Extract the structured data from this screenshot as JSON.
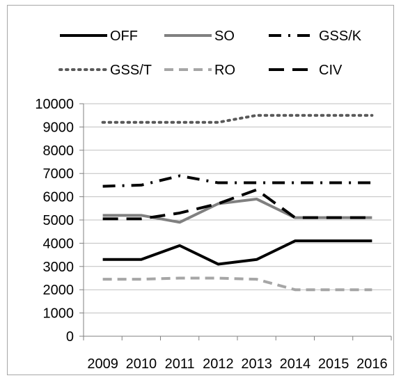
{
  "chart_data": {
    "type": "line",
    "categories": [
      "2009",
      "2010",
      "2011",
      "2012",
      "2013",
      "2014",
      "2015",
      "2016"
    ],
    "ylim": [
      0,
      10000
    ],
    "yticks": [
      "0",
      "1000",
      "2000",
      "3000",
      "4000",
      "5000",
      "6000",
      "7000",
      "8000",
      "9000",
      "10000"
    ],
    "grid": true,
    "legend_position": "top",
    "series": [
      {
        "name": "OFF",
        "color": "#000000",
        "style": "solid",
        "values": [
          3300,
          3300,
          3900,
          3100,
          3300,
          4100,
          4100,
          4100
        ]
      },
      {
        "name": "SO",
        "color": "#808080",
        "style": "solid",
        "values": [
          5200,
          5200,
          4900,
          5700,
          5900,
          5100,
          5100,
          5100
        ]
      },
      {
        "name": "GSS/K",
        "color": "#000000",
        "style": "dashdot",
        "values": [
          6450,
          6500,
          6900,
          6600,
          6600,
          6600,
          6600,
          6600
        ]
      },
      {
        "name": "GSS/T",
        "color": "#595959",
        "style": "dotted",
        "values": [
          9200,
          9200,
          9200,
          9200,
          9500,
          9500,
          9500,
          9500
        ]
      },
      {
        "name": "RO",
        "color": "#a6a6a6",
        "style": "dashed",
        "values": [
          2450,
          2450,
          2500,
          2500,
          2450,
          2000,
          2000,
          2000
        ]
      },
      {
        "name": "CIV",
        "color": "#000000",
        "style": "longdash",
        "values": [
          5050,
          5050,
          5300,
          5700,
          6300,
          5100,
          5100,
          5100
        ]
      }
    ]
  }
}
